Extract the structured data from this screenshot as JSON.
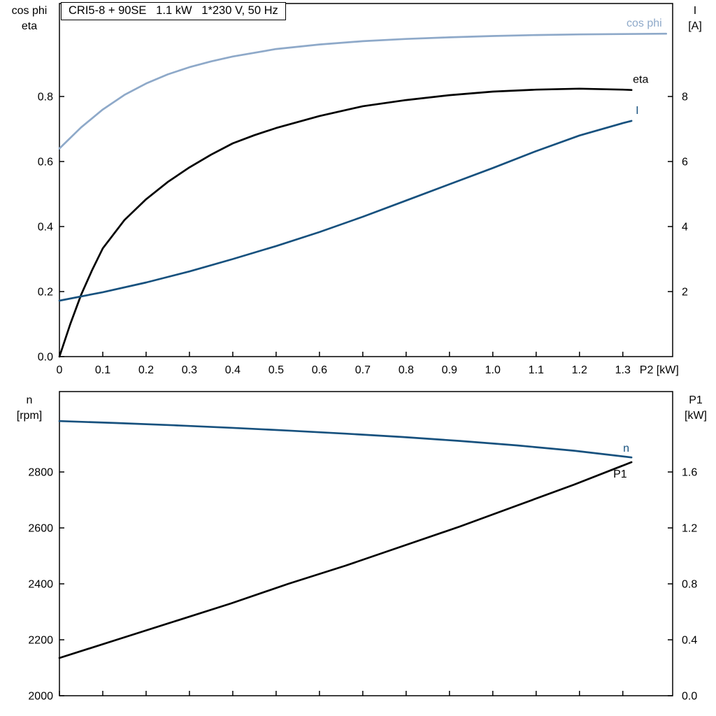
{
  "title_box": {
    "text": "CRI5-8 + 90SE   1.1 kW   1*230 V, 50 Hz"
  },
  "axis_corner_labels": {
    "top_left_line1": "cos phi",
    "top_left_line2": "eta",
    "top_right_line1": "I",
    "top_right_line2": "[A]",
    "bottom_left_line1": "n",
    "bottom_left_line2": "[rpm]",
    "bottom_right_line1": "P1",
    "bottom_right_line2": "[kW]"
  },
  "colors": {
    "light_blue": "#8ea9c9",
    "dark_blue": "#17517e",
    "black": "#000000",
    "axis": "#000000"
  },
  "chart_data": [
    {
      "type": "line",
      "title": "CRI5-8 + 90SE   1.1 kW   1*230 V, 50 Hz",
      "x_axis": {
        "label": "P2 [kW]",
        "label_at": 1.384,
        "range": [
          0,
          1.415
        ],
        "ticks": [
          0,
          0.1,
          0.2,
          0.3,
          0.4,
          0.5,
          0.6,
          0.7,
          0.8,
          0.9,
          1.0,
          1.1,
          1.2,
          1.3
        ],
        "tick_labels": [
          "0",
          "0.1",
          "0.2",
          "0.3",
          "0.4",
          "0.5",
          "0.6",
          "0.7",
          "0.8",
          "0.9",
          "1.0",
          "1.1",
          "1.2",
          "1.3"
        ],
        "show_tick_labels": true
      },
      "y_left": {
        "title": "cos phi / eta",
        "range": [
          0,
          1.086
        ],
        "ticks": [
          0,
          0.2,
          0.4,
          0.6,
          0.8
        ],
        "tick_labels": [
          "0.0",
          "0.2",
          "0.4",
          "0.6",
          "0.8"
        ]
      },
      "y_right": {
        "title": "I [A]",
        "range": [
          0,
          10.86
        ],
        "ticks": [
          2,
          4,
          6,
          8
        ],
        "tick_labels": [
          "2",
          "4",
          "6",
          "8"
        ]
      },
      "grid": false,
      "series": [
        {
          "name": "cos phi",
          "axis": "left",
          "color": "#8ea9c9",
          "width": 2.7,
          "x": [
            0,
            0.05,
            0.1,
            0.15,
            0.2,
            0.25,
            0.3,
            0.35,
            0.4,
            0.5,
            0.6,
            0.7,
            0.8,
            0.9,
            1.0,
            1.1,
            1.2,
            1.3,
            1.4
          ],
          "y": [
            0.64,
            0.705,
            0.76,
            0.805,
            0.84,
            0.868,
            0.89,
            0.908,
            0.923,
            0.946,
            0.96,
            0.97,
            0.977,
            0.982,
            0.986,
            0.989,
            0.991,
            0.992,
            0.993
          ],
          "label": {
            "text": "cos phi",
            "anchor": "end",
            "dx": -6,
            "dy": -10,
            "color": "#8ea9c9"
          }
        },
        {
          "name": "eta",
          "axis": "left",
          "color": "#000000",
          "width": 2.7,
          "x": [
            0,
            0.025,
            0.05,
            0.075,
            0.1,
            0.15,
            0.2,
            0.25,
            0.3,
            0.35,
            0.4,
            0.45,
            0.5,
            0.6,
            0.7,
            0.8,
            0.9,
            1.0,
            1.1,
            1.2,
            1.3,
            1.32
          ],
          "y": [
            0,
            0.1,
            0.19,
            0.265,
            0.333,
            0.42,
            0.484,
            0.537,
            0.582,
            0.621,
            0.656,
            0.681,
            0.703,
            0.74,
            0.77,
            0.789,
            0.804,
            0.815,
            0.821,
            0.824,
            0.821,
            0.82
          ],
          "label": {
            "text": "eta",
            "anchor": "start",
            "dx": 2,
            "dy": -10,
            "color": "#000000"
          }
        },
        {
          "name": "I",
          "axis": "right",
          "color": "#17517e",
          "width": 2.7,
          "x": [
            0,
            0.1,
            0.2,
            0.3,
            0.4,
            0.5,
            0.6,
            0.7,
            0.8,
            0.9,
            1.0,
            1.1,
            1.2,
            1.3,
            1.32
          ],
          "y": [
            1.72,
            1.98,
            2.28,
            2.62,
            3.0,
            3.4,
            3.83,
            4.3,
            4.8,
            5.3,
            5.8,
            6.32,
            6.8,
            7.18,
            7.25
          ],
          "label": {
            "text": "I",
            "anchor": "start",
            "dx": 6,
            "dy": -10,
            "color": "#17517e"
          }
        }
      ]
    },
    {
      "type": "line",
      "title": "",
      "x_axis": {
        "label": "",
        "label_at": 1.384,
        "range": [
          0,
          1.415
        ],
        "ticks": [
          0,
          0.1,
          0.2,
          0.3,
          0.4,
          0.5,
          0.6,
          0.7,
          0.8,
          0.9,
          1.0,
          1.1,
          1.2,
          1.3
        ],
        "tick_labels": [],
        "show_tick_labels": false
      },
      "y_left": {
        "title": "n [rpm]",
        "range": [
          2000,
          3087.5
        ],
        "ticks": [
          2000,
          2200,
          2400,
          2600,
          2800
        ],
        "tick_labels": [
          "2000",
          "2200",
          "2400",
          "2600",
          "2800"
        ]
      },
      "y_right": {
        "title": "P1 [kW]",
        "range": [
          0,
          2.175
        ],
        "ticks": [
          0,
          0.4,
          0.8,
          1.2,
          1.6
        ],
        "tick_labels": [
          "0.0",
          "0.4",
          "0.8",
          "1.2",
          "1.6"
        ]
      },
      "grid": false,
      "series": [
        {
          "name": "n",
          "axis": "left",
          "color": "#17517e",
          "width": 2.7,
          "x": [
            0,
            0.132,
            0.264,
            0.396,
            0.528,
            0.66,
            0.792,
            0.924,
            1.056,
            1.188,
            1.32
          ],
          "y": [
            2982,
            2975,
            2967,
            2958,
            2948,
            2937,
            2925,
            2911,
            2895,
            2876,
            2852
          ],
          "label": {
            "text": "n",
            "anchor": "start",
            "dx": -12,
            "dy": -8,
            "color": "#17517e"
          }
        },
        {
          "name": "P1",
          "axis": "right",
          "color": "#000000",
          "width": 2.7,
          "x": [
            0,
            0.132,
            0.264,
            0.396,
            0.528,
            0.66,
            0.792,
            0.924,
            1.056,
            1.188,
            1.32
          ],
          "y": [
            0.27,
            0.4,
            0.53,
            0.66,
            0.8,
            0.93,
            1.07,
            1.21,
            1.36,
            1.51,
            1.67
          ],
          "label": {
            "text": "P1",
            "anchor": "start",
            "dx": -26,
            "dy": 22,
            "color": "#000000"
          }
        }
      ]
    }
  ]
}
